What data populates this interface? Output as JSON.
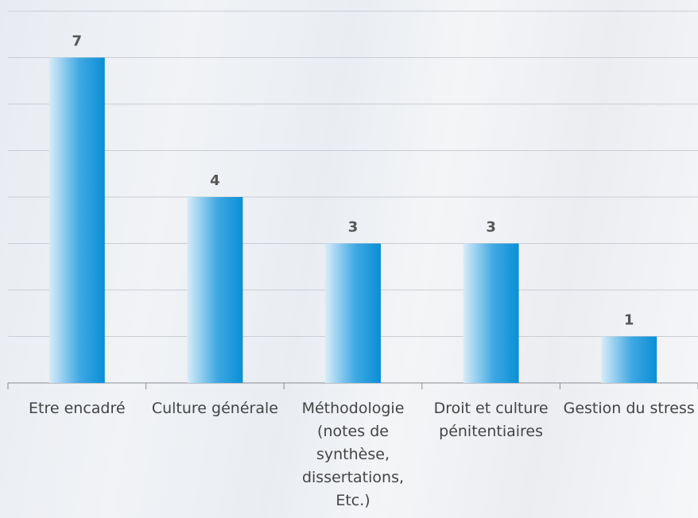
{
  "chart_data": {
    "type": "bar",
    "categories": [
      "Etre encadré",
      "Culture générale",
      "Méthodologie (notes de synthèse, dissertations, Etc.)",
      "Droit et culture pénitentiaires",
      "Gestion du stress"
    ],
    "values": [
      7,
      4,
      3,
      3,
      1
    ],
    "color": "#0a8fd6",
    "ylim": [
      0,
      8
    ],
    "yticks": [
      0,
      1,
      2,
      3,
      4,
      5,
      6,
      7,
      8
    ],
    "grid": true
  }
}
